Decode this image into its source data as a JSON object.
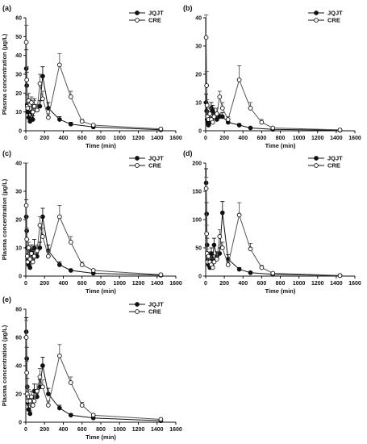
{
  "figure": {
    "ylabel": "Plasma concentration (µg/L)",
    "xlabel": "Time (min)"
  },
  "chart_data": [
    {
      "panel": "(a)",
      "type": "line",
      "xlim": [
        0,
        1600
      ],
      "ylim": [
        0,
        60
      ],
      "xticks": [
        0,
        200,
        400,
        600,
        800,
        1000,
        1200,
        1400,
        1600
      ],
      "yticks": [
        0,
        10,
        20,
        30,
        40,
        50,
        60
      ],
      "xlabel": "Time (min)",
      "ylabel": "Plasma concentration (µg/L)",
      "legend_position": "top-right",
      "series": [
        {
          "name": "JQJT",
          "marker": "filled-circle",
          "x": [
            5,
            10,
            15,
            20,
            30,
            45,
            60,
            75,
            90,
            120,
            150,
            180,
            240,
            360,
            480,
            720,
            1440
          ],
          "y": [
            33,
            24,
            14,
            10,
            7,
            5,
            10,
            6,
            13,
            11,
            13,
            29,
            12,
            6,
            3.5,
            2,
            0.5
          ],
          "error": [
            10,
            7,
            5,
            3,
            2,
            2,
            3,
            2,
            4,
            3,
            3,
            5,
            3,
            1.5,
            1,
            0.5,
            0.3
          ]
        },
        {
          "name": "CRE",
          "marker": "open-circle",
          "x": [
            5,
            10,
            15,
            20,
            30,
            45,
            60,
            75,
            90,
            120,
            150,
            180,
            240,
            360,
            480,
            600,
            720,
            1440
          ],
          "y": [
            47,
            27,
            13,
            12,
            16,
            14,
            15,
            10,
            13,
            11,
            25,
            17,
            7,
            35,
            18,
            5,
            3,
            1
          ],
          "error": [
            9,
            7,
            4,
            3,
            4,
            3,
            3,
            2,
            3,
            3,
            5,
            4,
            2,
            6,
            3,
            1,
            0.5,
            0.3
          ]
        }
      ]
    },
    {
      "panel": "(b)",
      "type": "line",
      "xlim": [
        0,
        1600
      ],
      "ylim": [
        0,
        40
      ],
      "xticks": [
        0,
        200,
        400,
        600,
        800,
        1000,
        1200,
        1400,
        1600
      ],
      "yticks": [
        0,
        10,
        20,
        30,
        40
      ],
      "xlabel": "Time (min)",
      "ylabel": "",
      "legend_position": "top-right",
      "series": [
        {
          "name": "JQJT",
          "marker": "filled-circle",
          "x": [
            5,
            10,
            15,
            20,
            30,
            45,
            60,
            75,
            90,
            120,
            150,
            180,
            240,
            360,
            480,
            720,
            1440
          ],
          "y": [
            10,
            7,
            4,
            3,
            2,
            3,
            8,
            7,
            6,
            4,
            5,
            5,
            3,
            2,
            1,
            0.5,
            0.2
          ],
          "error": [
            3,
            2,
            1,
            1,
            1,
            1,
            2,
            2,
            2,
            1,
            1,
            1.5,
            1,
            0.5,
            0.3,
            0.2,
            0.1
          ]
        },
        {
          "name": "CRE",
          "marker": "open-circle",
          "x": [
            5,
            10,
            15,
            20,
            30,
            45,
            60,
            75,
            90,
            120,
            150,
            180,
            240,
            360,
            480,
            600,
            720,
            1440
          ],
          "y": [
            33,
            16,
            9,
            5,
            4,
            6,
            4,
            3,
            5,
            6,
            12,
            8,
            4,
            18,
            8,
            3,
            1,
            0.3
          ],
          "error": [
            8,
            5,
            2,
            1.5,
            1,
            2,
            1,
            1,
            1,
            2,
            2,
            2,
            1,
            5,
            2,
            1,
            0.3,
            0.1
          ]
        }
      ]
    },
    {
      "panel": "(c)",
      "type": "line",
      "xlim": [
        0,
        1600
      ],
      "ylim": [
        0,
        40
      ],
      "xticks": [
        0,
        200,
        400,
        600,
        800,
        1000,
        1200,
        1400,
        1600
      ],
      "yticks": [
        0,
        10,
        20,
        30,
        40
      ],
      "xlabel": "Time (min)",
      "ylabel": "Plasma concentration (µg/L)",
      "legend_position": "top-right",
      "series": [
        {
          "name": "JQJT",
          "marker": "filled-circle",
          "x": [
            5,
            10,
            15,
            20,
            30,
            45,
            60,
            75,
            90,
            120,
            150,
            180,
            240,
            360,
            480,
            720,
            1440
          ],
          "y": [
            21,
            16,
            10,
            6,
            4,
            3,
            9,
            6,
            10,
            7,
            10,
            21,
            9,
            4,
            2,
            1,
            0.3
          ],
          "error": [
            6,
            5,
            3,
            2,
            1,
            1,
            2,
            2,
            3,
            2,
            2,
            3,
            2,
            1,
            0.5,
            0.3,
            0.1
          ]
        },
        {
          "name": "CRE",
          "marker": "open-circle",
          "x": [
            5,
            10,
            15,
            20,
            30,
            45,
            60,
            75,
            90,
            120,
            150,
            180,
            240,
            360,
            480,
            600,
            720,
            1440
          ],
          "y": [
            25,
            13,
            7,
            5,
            10,
            6,
            8,
            5,
            7,
            9,
            18,
            14,
            7,
            21,
            12,
            4,
            2,
            0.5
          ],
          "error": [
            15,
            4,
            2,
            1.5,
            2,
            2,
            2,
            1,
            2,
            2,
            3,
            3,
            2,
            4,
            2,
            1,
            0.4,
            0.1
          ]
        }
      ]
    },
    {
      "panel": "(d)",
      "type": "line",
      "xlim": [
        0,
        1600
      ],
      "ylim": [
        0,
        200
      ],
      "xticks": [
        0,
        200,
        400,
        600,
        800,
        1000,
        1200,
        1400,
        1600
      ],
      "yticks": [
        0,
        50,
        100,
        150,
        200
      ],
      "xlabel": "Time (min)",
      "ylabel": "",
      "legend_position": "top-right",
      "series": [
        {
          "name": "JQJT",
          "marker": "filled-circle",
          "x": [
            5,
            10,
            15,
            20,
            30,
            45,
            60,
            75,
            90,
            120,
            150,
            180,
            240,
            360,
            480,
            720,
            1440
          ],
          "y": [
            165,
            110,
            55,
            30,
            20,
            15,
            40,
            30,
            55,
            35,
            40,
            112,
            30,
            12,
            6,
            3,
            1
          ],
          "error": [
            25,
            20,
            12,
            8,
            5,
            4,
            10,
            8,
            12,
            8,
            10,
            20,
            8,
            3,
            2,
            1,
            0.5
          ]
        },
        {
          "name": "CRE",
          "marker": "open-circle",
          "x": [
            5,
            10,
            15,
            20,
            30,
            45,
            60,
            75,
            90,
            120,
            150,
            180,
            240,
            360,
            480,
            600,
            720,
            1440
          ],
          "y": [
            155,
            75,
            40,
            25,
            35,
            25,
            20,
            15,
            25,
            30,
            70,
            50,
            20,
            108,
            48,
            15,
            5,
            1
          ],
          "error": [
            20,
            15,
            8,
            6,
            8,
            6,
            5,
            4,
            6,
            8,
            12,
            10,
            5,
            22,
            10,
            4,
            2,
            0.5
          ]
        }
      ]
    },
    {
      "panel": "(e)",
      "type": "line",
      "xlim": [
        0,
        1600
      ],
      "ylim": [
        0,
        80
      ],
      "xticks": [
        0,
        200,
        400,
        600,
        800,
        1000,
        1200,
        1400,
        1600
      ],
      "yticks": [
        0,
        20,
        40,
        60,
        80
      ],
      "xlabel": "Time (min)",
      "ylabel": "Plasma concentration (µg/L)",
      "legend_position": "top-right",
      "series": [
        {
          "name": "JQJT",
          "marker": "filled-circle",
          "x": [
            5,
            10,
            15,
            20,
            30,
            45,
            60,
            75,
            90,
            120,
            150,
            180,
            240,
            360,
            480,
            720,
            1440
          ],
          "y": [
            64,
            45,
            25,
            14,
            9,
            6,
            18,
            12,
            22,
            18,
            25,
            40,
            20,
            10,
            5,
            3,
            1
          ],
          "error": [
            10,
            8,
            6,
            4,
            3,
            2,
            4,
            3,
            5,
            4,
            5,
            6,
            4,
            2,
            1,
            0.5,
            0.3
          ]
        },
        {
          "name": "CRE",
          "marker": "open-circle",
          "x": [
            5,
            10,
            15,
            20,
            30,
            45,
            60,
            75,
            90,
            120,
            150,
            180,
            240,
            360,
            480,
            600,
            720,
            1440
          ],
          "y": [
            60,
            35,
            20,
            15,
            18,
            15,
            18,
            12,
            15,
            22,
            32,
            25,
            12,
            47,
            28,
            12,
            5,
            2
          ],
          "error": [
            12,
            8,
            5,
            4,
            5,
            4,
            4,
            3,
            4,
            5,
            6,
            5,
            3,
            8,
            4,
            2,
            1,
            0.4
          ]
        }
      ]
    }
  ]
}
